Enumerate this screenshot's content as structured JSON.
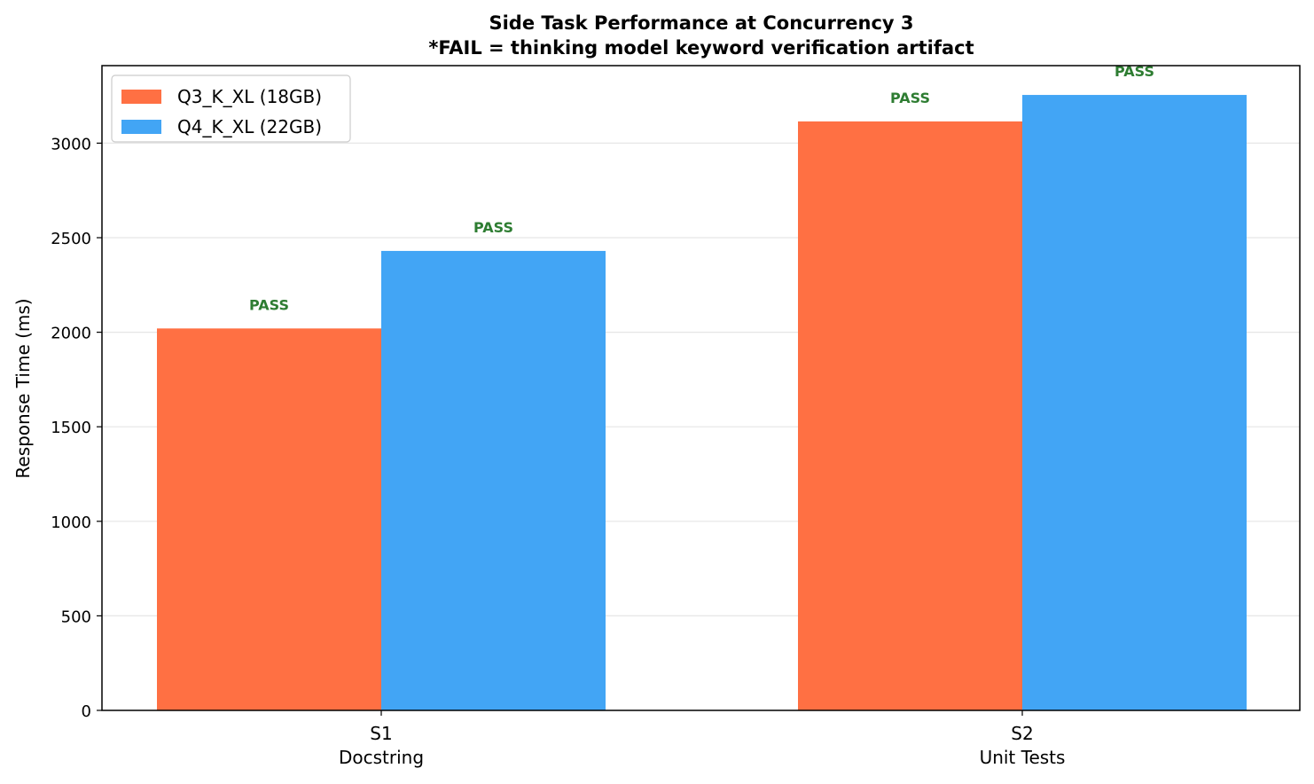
{
  "chart_data": {
    "type": "bar",
    "title": "Side Task Performance at Concurrency 3",
    "subtitle": "*FAIL = thinking model keyword verification artifact",
    "xlabel": "",
    "ylabel": "Response Time (ms)",
    "ylim": [
      0,
      3410
    ],
    "yticks": [
      0,
      500,
      1000,
      1500,
      2000,
      2500,
      3000
    ],
    "grid": "horizontal",
    "legend_position": "top-left",
    "categories": [
      {
        "code": "S1",
        "name": "Docstring"
      },
      {
        "code": "S2",
        "name": "Unit Tests"
      }
    ],
    "series": [
      {
        "name": "Q3_K_XL (18GB)",
        "color": "#ff7043",
        "values": [
          2020,
          3115
        ],
        "labels": [
          "PASS",
          "PASS"
        ]
      },
      {
        "name": "Q4_K_XL (22GB)",
        "color": "#42a5f5",
        "values": [
          2430,
          3255
        ],
        "labels": [
          "PASS",
          "PASS"
        ]
      }
    ],
    "label_color": "#2e7d32",
    "grid_color": "#e6e6e6",
    "axis_color": "#000000"
  }
}
